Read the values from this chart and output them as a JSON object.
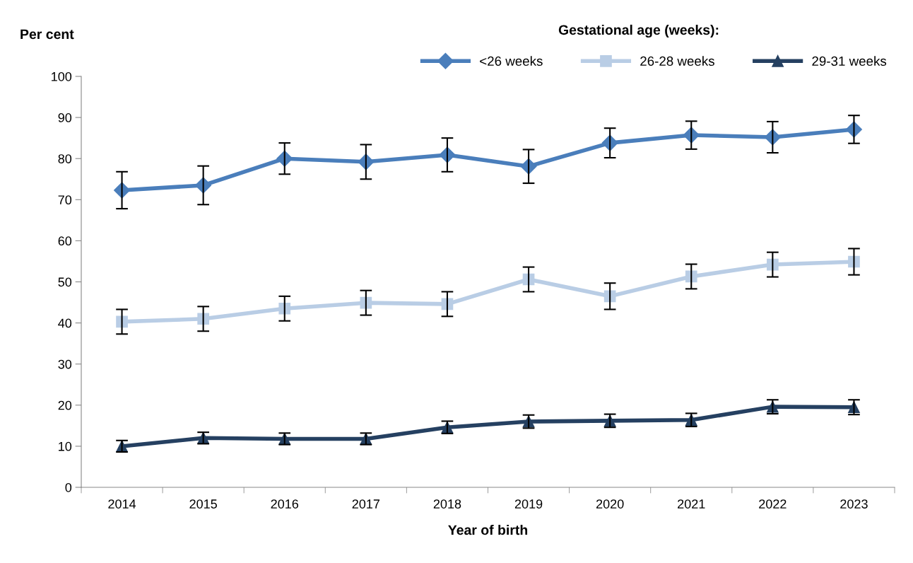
{
  "chart_data": {
    "type": "line",
    "ylabel": "Per cent",
    "xlabel": "Year of birth",
    "legend_title": "Gestational age (weeks):",
    "categories": [
      "2014",
      "2015",
      "2016",
      "2017",
      "2018",
      "2019",
      "2020",
      "2021",
      "2022",
      "2023"
    ],
    "series": [
      {
        "name": "<26 weeks",
        "color": "#4a7ebb",
        "marker": "diamond",
        "values": [
          72.3,
          73.5,
          80.0,
          79.2,
          80.9,
          78.1,
          83.8,
          85.7,
          85.2,
          87.1
        ],
        "errors": [
          4.5,
          4.7,
          3.8,
          4.2,
          4.1,
          4.1,
          3.6,
          3.4,
          3.8,
          3.4
        ]
      },
      {
        "name": "26-28 weeks",
        "color": "#b9cde5",
        "marker": "square",
        "values": [
          40.3,
          41.0,
          43.5,
          44.9,
          44.6,
          50.6,
          46.5,
          51.3,
          54.2,
          54.9
        ],
        "errors": [
          3.0,
          3.0,
          3.0,
          3.0,
          3.0,
          3.0,
          3.2,
          3.0,
          3.0,
          3.2
        ]
      },
      {
        "name": "29-31 weeks",
        "color": "#254061",
        "marker": "triangle",
        "values": [
          10.0,
          12.0,
          11.8,
          11.8,
          14.6,
          16.0,
          16.2,
          16.4,
          19.6,
          19.5
        ],
        "errors": [
          1.4,
          1.4,
          1.4,
          1.4,
          1.5,
          1.6,
          1.6,
          1.6,
          1.7,
          1.8
        ]
      }
    ],
    "ylim": [
      0,
      100
    ],
    "yticks": [
      0,
      10,
      20,
      30,
      40,
      50,
      60,
      70,
      80,
      90,
      100
    ],
    "grid": false,
    "legend": "top right",
    "line_style": "solid"
  }
}
